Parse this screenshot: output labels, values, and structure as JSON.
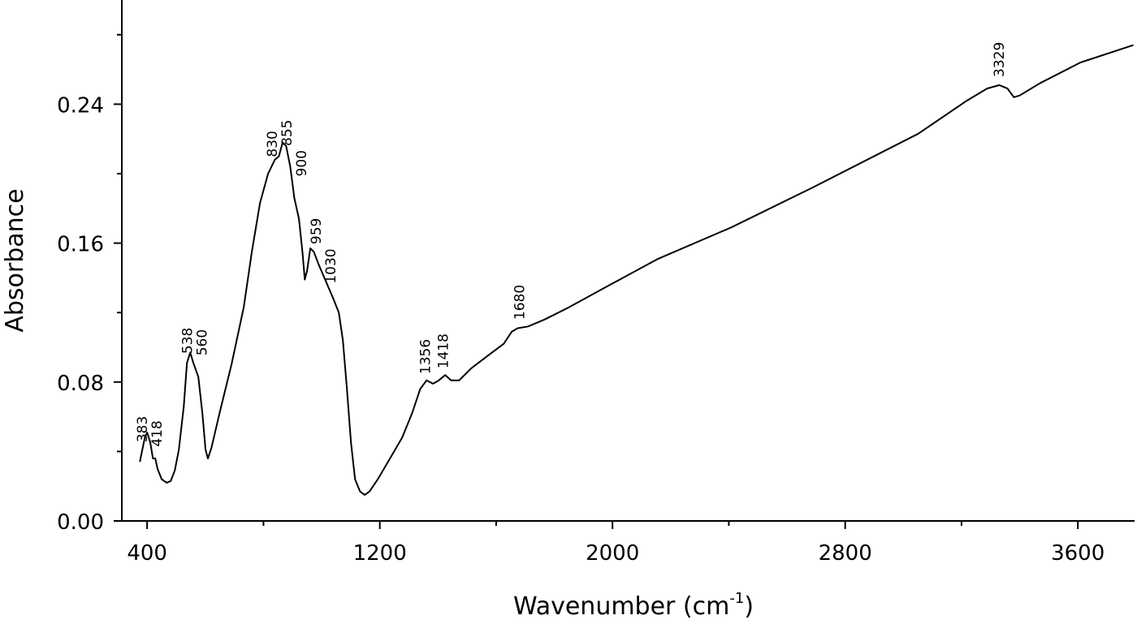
{
  "chart_data": {
    "type": "line",
    "xlabel": [
      "Wavenumber (cm",
      "-1",
      ")"
    ],
    "ylabel": "Absorbance",
    "x": [
      375,
      392,
      400,
      411,
      420,
      428,
      436,
      450,
      467,
      481,
      495,
      509,
      526,
      537,
      548,
      559,
      576,
      590,
      601,
      609,
      621,
      649,
      690,
      732,
      760,
      788,
      816,
      839,
      853,
      866,
      878,
      892,
      906,
      922,
      934,
      942,
      950,
      961,
      973,
      989,
      1012,
      1040,
      1059,
      1073,
      1087,
      1101,
      1115,
      1132,
      1148,
      1165,
      1193,
      1235,
      1277,
      1311,
      1339,
      1361,
      1383,
      1403,
      1425,
      1445,
      1473,
      1515,
      1570,
      1626,
      1654,
      1674,
      1710,
      1766,
      1850,
      2003,
      2157,
      2408,
      2688,
      3051,
      3218,
      3288,
      3330,
      3358,
      3380,
      3400,
      3469,
      3609,
      3791
    ],
    "values": [
      0.034,
      0.048,
      0.051,
      0.045,
      0.036,
      0.036,
      0.03,
      0.024,
      0.022,
      0.023,
      0.029,
      0.041,
      0.066,
      0.091,
      0.097,
      0.091,
      0.083,
      0.062,
      0.041,
      0.036,
      0.042,
      0.062,
      0.09,
      0.123,
      0.155,
      0.183,
      0.2,
      0.208,
      0.21,
      0.218,
      0.216,
      0.204,
      0.186,
      0.174,
      0.155,
      0.139,
      0.144,
      0.157,
      0.155,
      0.148,
      0.139,
      0.128,
      0.12,
      0.104,
      0.076,
      0.045,
      0.024,
      0.017,
      0.015,
      0.017,
      0.024,
      0.036,
      0.048,
      0.062,
      0.076,
      0.081,
      0.079,
      0.081,
      0.084,
      0.081,
      0.081,
      0.088,
      0.095,
      0.102,
      0.109,
      0.111,
      0.112,
      0.116,
      0.123,
      0.137,
      0.151,
      0.169,
      0.192,
      0.223,
      0.242,
      0.249,
      0.251,
      0.249,
      0.244,
      0.245,
      0.252,
      0.264,
      0.274
    ],
    "color": "#000000",
    "peaks": [
      383,
      418,
      538,
      560,
      830,
      855,
      900,
      959,
      1030,
      1356,
      1418,
      1680,
      3329
    ],
    "xlim": [
      313,
      3795
    ],
    "xticks": [
      400,
      1200,
      2000,
      2800,
      3600
    ],
    "xminorticks": [
      800,
      1600,
      2400,
      3200
    ],
    "ylim": [
      0,
      0.3
    ],
    "yticks": [
      {
        "value": 0,
        "label": "0.00"
      },
      0.08,
      0.16,
      0.24
    ],
    "yminorticks": [
      0.04,
      0.12,
      0.2,
      0.28
    ]
  }
}
